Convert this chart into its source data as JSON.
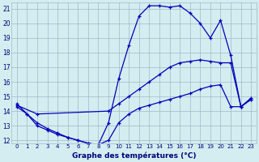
{
  "xlabel": "Graphe des températures (°C)",
  "bg_color": "#d4edf0",
  "grid_color": "#a0b8c8",
  "line_color": "#0000bb",
  "xlim": [
    -0.5,
    23.5
  ],
  "ylim": [
    11.8,
    21.4
  ],
  "yticks": [
    12,
    13,
    14,
    15,
    16,
    17,
    18,
    19,
    20,
    21
  ],
  "xticks": [
    0,
    1,
    2,
    3,
    4,
    5,
    6,
    7,
    8,
    9,
    10,
    11,
    12,
    13,
    14,
    15,
    16,
    17,
    18,
    19,
    20,
    21,
    22,
    23
  ],
  "line1_x": [
    0,
    1,
    2,
    3,
    4,
    5,
    6,
    7,
    8,
    9,
    10,
    11,
    12,
    13,
    14,
    15,
    16,
    17,
    18,
    19,
    20,
    21,
    22,
    23
  ],
  "line1_y": [
    14.5,
    13.8,
    13.2,
    12.8,
    12.5,
    12.2,
    12.0,
    11.8,
    11.7,
    13.2,
    16.2,
    18.5,
    20.5,
    21.2,
    21.2,
    21.1,
    21.2,
    20.7,
    20.0,
    19.0,
    20.2,
    17.8,
    14.3,
    14.9
  ],
  "line2_x": [
    0,
    2,
    9,
    10,
    11,
    12,
    13,
    14,
    15,
    16,
    17,
    18,
    19,
    20,
    21,
    22,
    23
  ],
  "line2_y": [
    14.4,
    13.8,
    14.0,
    14.5,
    15.0,
    15.5,
    16.0,
    16.5,
    17.0,
    17.3,
    17.4,
    17.5,
    17.4,
    17.3,
    17.3,
    14.3,
    14.8
  ],
  "line3_x": [
    0,
    1,
    2,
    3,
    4,
    5,
    6,
    7,
    8,
    9,
    10,
    11,
    12,
    13,
    14,
    15,
    16,
    17,
    18,
    19,
    20,
    21,
    22,
    23
  ],
  "line3_y": [
    14.3,
    13.8,
    13.0,
    12.7,
    12.4,
    12.2,
    12.0,
    11.8,
    11.7,
    12.0,
    13.2,
    13.8,
    14.2,
    14.4,
    14.6,
    14.8,
    15.0,
    15.2,
    15.5,
    15.7,
    15.8,
    14.3,
    14.3,
    14.8
  ]
}
